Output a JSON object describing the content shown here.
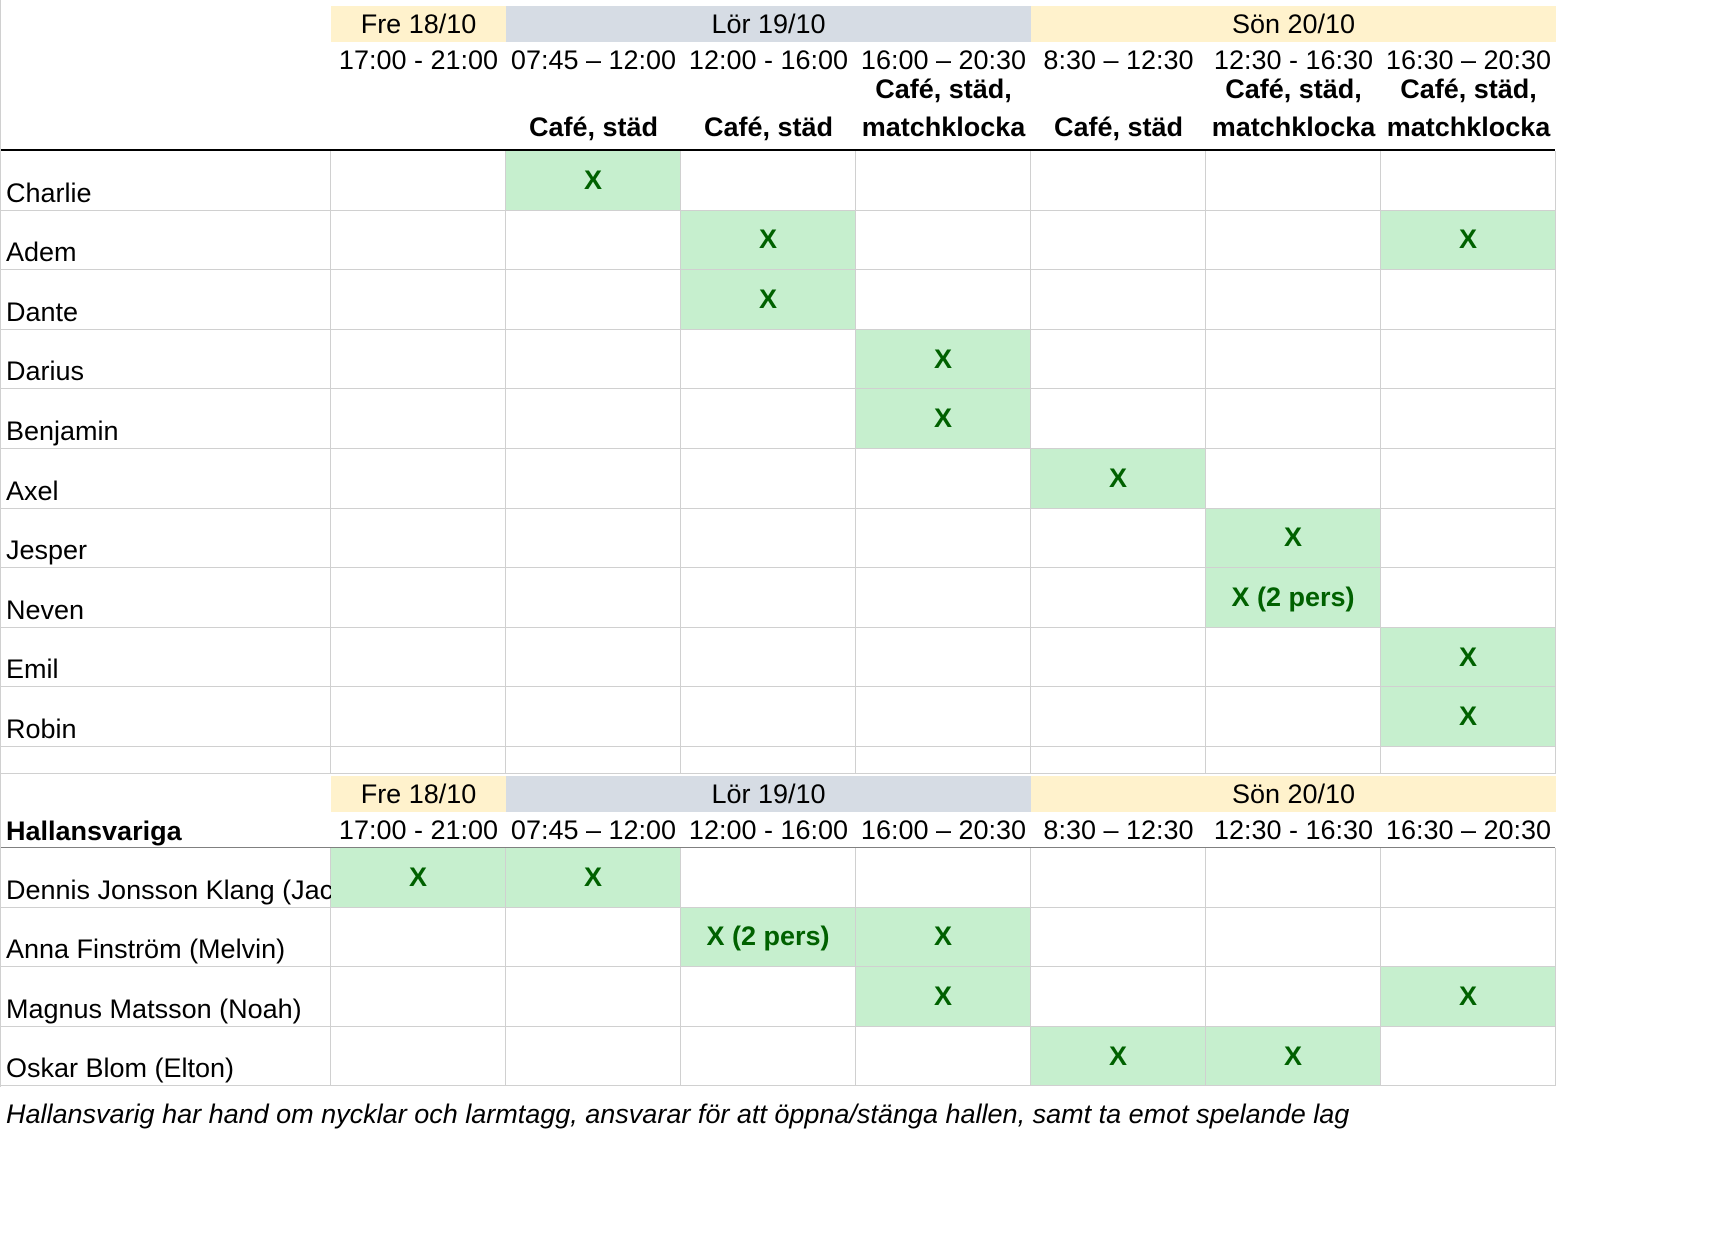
{
  "colors": {
    "fri_fill": "#fff2cc",
    "sat_fill": "#d6dce4",
    "sun_fill": "#fff2cc",
    "mark_fill": "#c6efce",
    "mark_text": "#006100",
    "gridline": "#d0d0d0"
  },
  "days": [
    {
      "label": "Fre 18/10",
      "span": 1,
      "color": "fri_fill"
    },
    {
      "label": "Lör 19/10",
      "span": 3,
      "color": "sat_fill"
    },
    {
      "label": "Sön 20/10",
      "span": 3,
      "color": "sun_fill"
    }
  ],
  "slots": [
    "17:00 - 21:00",
    "07:45 – 12:00",
    "12:00 - 16:00",
    "16:00 – 20:30",
    "8:30 – 12:30",
    "12:30 - 16:30",
    "16:30 – 20:30"
  ],
  "tasks": [
    "",
    "Café, städ",
    "Café, städ",
    "Café, städ, matchklocka",
    "Café, städ",
    "Café, städ, matchklocka",
    "Café, städ, matchklocka"
  ],
  "players": [
    {
      "name": "Charlie",
      "cells": [
        "",
        "X",
        "",
        "",
        "",
        "",
        ""
      ]
    },
    {
      "name": "Adem",
      "cells": [
        "",
        "",
        "X",
        "",
        "",
        "",
        "X"
      ]
    },
    {
      "name": "Dante",
      "cells": [
        "",
        "",
        "X",
        "",
        "",
        "",
        ""
      ]
    },
    {
      "name": "Darius",
      "cells": [
        "",
        "",
        "",
        "X",
        "",
        "",
        ""
      ]
    },
    {
      "name": "Benjamin",
      "cells": [
        "",
        "",
        "",
        "X",
        "",
        "",
        ""
      ]
    },
    {
      "name": "Axel",
      "cells": [
        "",
        "",
        "",
        "",
        "X",
        "",
        ""
      ]
    },
    {
      "name": "Jesper",
      "cells": [
        "",
        "",
        "",
        "",
        "",
        "X",
        ""
      ]
    },
    {
      "name": "Neven",
      "cells": [
        "",
        "",
        "",
        "",
        "",
        "X (2 pers)",
        ""
      ]
    },
    {
      "name": "Emil",
      "cells": [
        "",
        "",
        "",
        "",
        "",
        "",
        "X"
      ]
    },
    {
      "name": "Robin",
      "cells": [
        "",
        "",
        "",
        "",
        "",
        "",
        "X"
      ]
    }
  ],
  "responsible_title": "Hallansvariga",
  "responsible": [
    {
      "name": "Dennis Jonsson Klang (Jack)",
      "cells": [
        "X",
        "X",
        "",
        "",
        "",
        "",
        ""
      ]
    },
    {
      "name": "Anna Finström (Melvin)",
      "cells": [
        "",
        "",
        "X (2 pers)",
        "X",
        "",
        "",
        ""
      ]
    },
    {
      "name": "Magnus Matsson (Noah)",
      "cells": [
        "",
        "",
        "",
        "X",
        "",
        "",
        "X"
      ]
    },
    {
      "name": "Oskar Blom (Elton)",
      "cells": [
        "",
        "",
        "",
        "",
        "X",
        "X",
        ""
      ]
    }
  ],
  "footnote": "Hallansvarig har hand om nycklar och larmtagg, ansvarar för att öppna/stänga hallen, samt ta emot spelande lag"
}
